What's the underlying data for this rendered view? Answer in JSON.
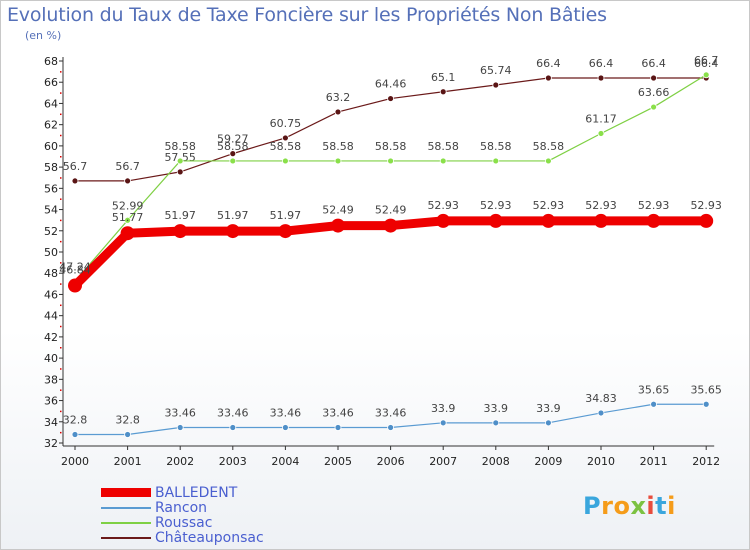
{
  "title": "Evolution du Taux de Taxe Foncière sur les Propriétés Non Bâties",
  "subtitle": "(en %)",
  "logo": {
    "text": "Proxiti",
    "letters": [
      "P",
      "r",
      "o",
      "x",
      "i",
      "t",
      "i"
    ],
    "colors": [
      "#3aa6dd",
      "#f59c1a",
      "#f59c1a",
      "#7cc242",
      "#e84c3d",
      "#3aa6dd",
      "#f59c1a"
    ]
  },
  "chart_data": {
    "type": "line",
    "title": "Evolution du Taux de Taxe Foncière sur les Propriétés Non Bâties",
    "ylabel": "(en %)",
    "xlabel": "",
    "ylim": [
      32,
      68
    ],
    "ytick_step": 2,
    "grid": false,
    "legend": "bottom-left",
    "categories": [
      "2000",
      "2001",
      "2002",
      "2003",
      "2004",
      "2005",
      "2006",
      "2007",
      "2008",
      "2009",
      "2010",
      "2011",
      "2012"
    ],
    "series": [
      {
        "name": "Châteauponsac",
        "color": "#6b1a1a",
        "values": [
          56.7,
          56.7,
          57.55,
          59.27,
          60.75,
          63.2,
          64.46,
          65.1,
          65.74,
          66.4,
          66.4,
          66.4,
          66.4
        ],
        "labels": [
          "56.7",
          "56.7",
          "57.55",
          "59.27",
          "60.75",
          "63.2",
          "64.46",
          "65.1",
          "65.74",
          "66.4",
          "66.4",
          "66.4",
          "66.4"
        ]
      },
      {
        "name": "Roussac",
        "color": "#7fd044",
        "values": [
          47.24,
          52.99,
          58.58,
          58.58,
          58.58,
          58.58,
          58.58,
          58.58,
          58.58,
          58.58,
          61.17,
          63.66,
          66.7
        ],
        "labels": [
          "47.24",
          "52.99",
          "58.58",
          "58.58",
          "58.58",
          "58.58",
          "58.58",
          "58.58",
          "58.58",
          "58.58",
          "61.17",
          "63.66",
          "66.7"
        ]
      },
      {
        "name": "Rancon",
        "color": "#5a9bd2",
        "values": [
          32.8,
          32.8,
          33.46,
          33.46,
          33.46,
          33.46,
          33.46,
          33.9,
          33.9,
          33.9,
          34.83,
          35.65,
          35.65
        ],
        "labels": [
          "32.8",
          "32.8",
          "33.46",
          "33.46",
          "33.46",
          "33.46",
          "33.46",
          "33.9",
          "33.9",
          "33.9",
          "34.83",
          "35.65",
          "35.65"
        ]
      },
      {
        "name": "BALLEDENT",
        "color": "#ee0000",
        "values": [
          46.84,
          51.77,
          51.97,
          51.97,
          51.97,
          52.49,
          52.49,
          52.93,
          52.93,
          52.93,
          52.93,
          52.93,
          52.93
        ],
        "labels": [
          "46.84",
          "51.77",
          "51.97",
          "51.97",
          "51.97",
          "52.49",
          "52.49",
          "52.93",
          "52.93",
          "52.93",
          "52.93",
          "52.93",
          "52.93"
        ]
      }
    ],
    "legend_order": [
      "BALLEDENT",
      "Rancon",
      "Roussac",
      "Châteauponsac"
    ]
  }
}
